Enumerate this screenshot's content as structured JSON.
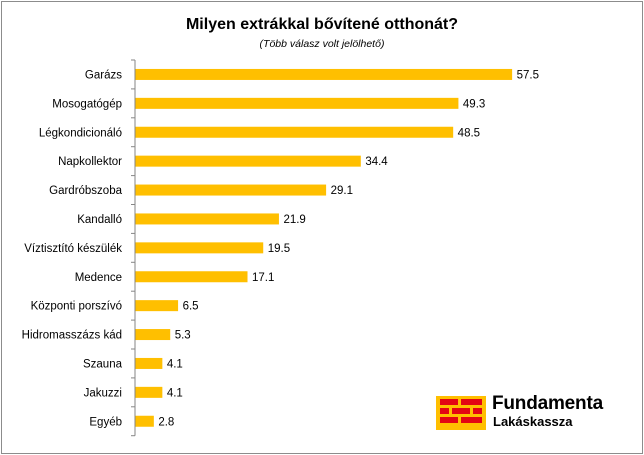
{
  "chart_data": {
    "type": "bar",
    "orientation": "horizontal",
    "title": "Milyen extrákkal bővítené otthonát?",
    "subtitle": "(Több válasz volt jelölhető)",
    "categories": [
      "Garázs",
      "Mosogatógép",
      "Légkondicionáló",
      "Napkollektor",
      "Gardróbszoba",
      "Kandalló",
      "Víztisztító készülék",
      "Medence",
      "Központi porszívó",
      "Hidromasszázs kád",
      "Szauna",
      "Jakuzzi",
      "Egyéb"
    ],
    "values": [
      57.5,
      49.3,
      48.5,
      34.4,
      29.1,
      21.9,
      19.5,
      17.1,
      6.5,
      5.3,
      4.1,
      4.1,
      2.8
    ],
    "value_labels": [
      "57.5",
      "49.3",
      "48.5",
      "34.4",
      "29.1",
      "21.9",
      "19.5",
      "17.1",
      "6.5",
      "5.3",
      "4.1",
      "4.1",
      "2.8"
    ],
    "xlim": [
      0,
      60
    ],
    "bar_color": "#FFBF00",
    "axis_color": "#868686",
    "grid": false,
    "legend": "none"
  },
  "logo": {
    "brand": "Fundamenta",
    "sub": "Lakáskassza",
    "mark_color": "#E30613",
    "mark_bg": "#FFBF00"
  }
}
